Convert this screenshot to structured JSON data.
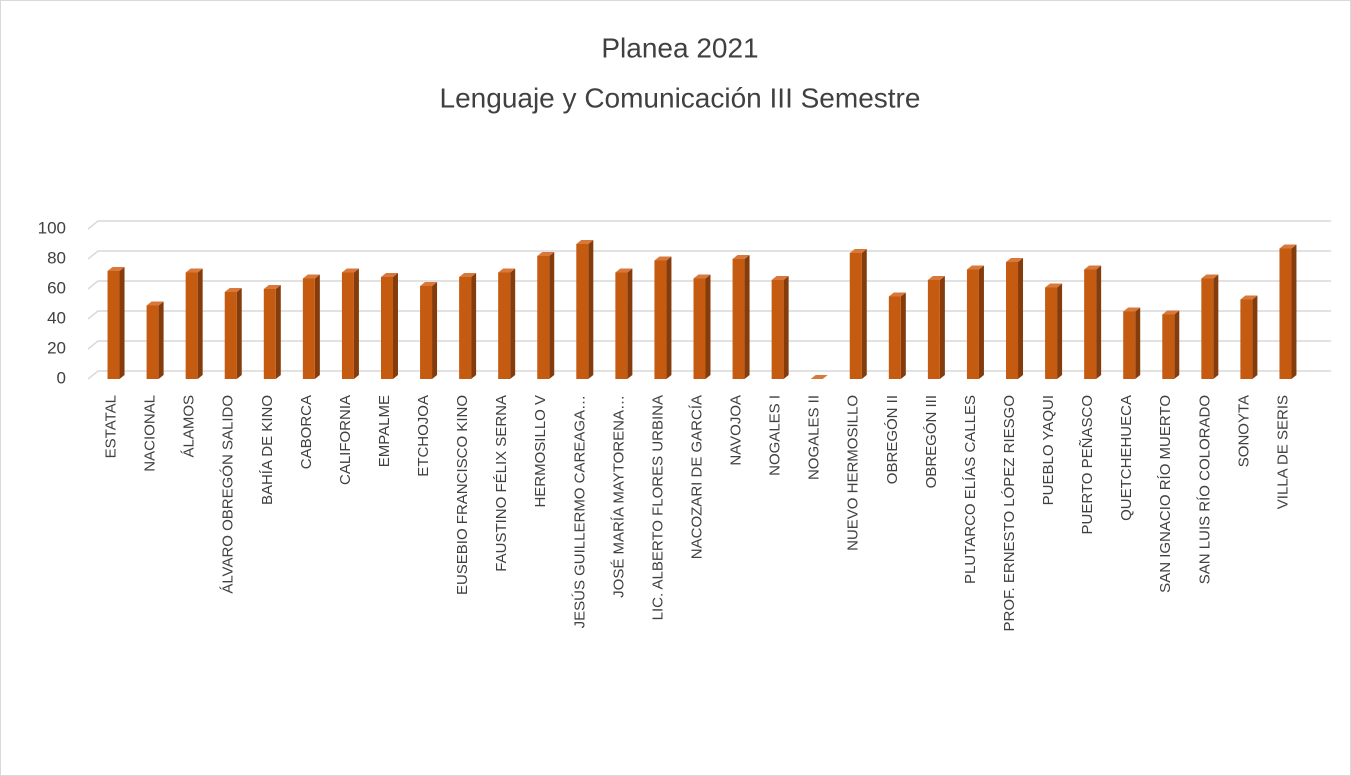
{
  "chart_data": {
    "type": "bar3d",
    "title": "Planea 2021",
    "subtitle": "Lenguaje y Comunicación III Semestre",
    "categories": [
      "ESTATAL",
      "NACIONAL",
      "ÁLAMOS",
      "ÁLVARO OBREGÓN SALIDO",
      "BAHÍA DE KINO",
      "CABORCA",
      "CALIFORNIA",
      "EMPALME",
      "ETCHOJOA",
      "EUSEBIO FRANCISCO KINO",
      "FAUSTINO FÉLIX SERNA",
      "HERMOSILLO V",
      "JESÚS GUILLERMO CAREAGA…",
      "JOSÉ MARÍA MAYTORENA…",
      "LIC. ALBERTO FLORES URBINA",
      "NACOZARI DE GARCÍA",
      "NAVOJOA",
      "NOGALES I",
      "NOGALES II",
      "NUEVO HERMOSILLO",
      "OBREGÓN II",
      "OBREGÓN III",
      "PLUTARCO ELÍAS CALLES",
      "PROF. ERNESTO LÓPEZ RIESGO",
      "PUEBLO YAQUI",
      "PUERTO PEÑASCO",
      "QUETCHEHUECA",
      "SAN IGNACIO RÍO MUERTO",
      "SAN LUIS RÍO COLORADO",
      "SONOYTA",
      "VILLA DE SERIS"
    ],
    "values": [
      72,
      49,
      71,
      58,
      60,
      67,
      71,
      68,
      62,
      68,
      71,
      82,
      90,
      71,
      79,
      67,
      80,
      66,
      0,
      84,
      55,
      66,
      73,
      78,
      61,
      73,
      45,
      43,
      67,
      53,
      87
    ],
    "color": "#c55a11",
    "ylim": [
      0,
      100
    ],
    "yticks": [
      0,
      20,
      40,
      60,
      80,
      100
    ],
    "grid": true
  }
}
